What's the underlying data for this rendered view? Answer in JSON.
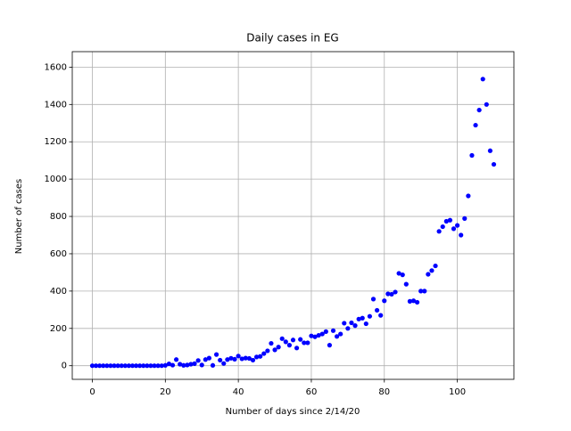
{
  "chart_data": {
    "type": "scatter",
    "title": "Daily cases in EG",
    "x_label": "Number of days since 2/14/20",
    "y_label": "Number of cases",
    "series": [
      {
        "color": "#0000ff",
        "x": [
          0,
          1,
          2,
          3,
          4,
          5,
          6,
          7,
          8,
          9,
          10,
          11,
          12,
          13,
          14,
          15,
          16,
          17,
          18,
          19,
          20,
          21,
          22,
          23,
          24,
          25,
          26,
          27,
          28,
          29,
          30,
          31,
          32,
          33,
          34,
          35,
          36,
          37,
          38,
          39,
          40,
          41,
          42,
          43,
          44,
          45,
          46,
          47,
          48,
          49,
          50,
          51,
          52,
          53,
          54,
          55,
          56,
          57,
          58,
          59,
          60,
          61,
          62,
          63,
          64,
          65,
          66,
          67,
          68,
          69,
          70,
          71,
          72,
          73,
          74,
          75,
          76,
          77,
          78,
          79,
          80,
          81,
          82,
          83,
          84,
          85,
          86,
          87,
          88,
          89,
          90,
          91,
          92,
          93,
          94,
          95,
          96,
          97,
          98,
          99,
          100,
          101,
          102,
          103,
          104,
          105,
          106,
          107,
          108,
          109,
          110
        ],
        "values": [
          0,
          0,
          0,
          0,
          0,
          0,
          0,
          0,
          0,
          0,
          0,
          0,
          0,
          0,
          0,
          0,
          0,
          0,
          0,
          0,
          2,
          10,
          3,
          33,
          8,
          2,
          4,
          8,
          11,
          28,
          4,
          33,
          41,
          2,
          60,
          30,
          12,
          33,
          40,
          35,
          52,
          37,
          41,
          39,
          30,
          47,
          50,
          65,
          80,
          120,
          85,
          100,
          145,
          128,
          110,
          138,
          95,
          141,
          123,
          123,
          160,
          155,
          163,
          170,
          183,
          110,
          188,
          157,
          170,
          228,
          200,
          230,
          215,
          250,
          255,
          225,
          265,
          357,
          297,
          270,
          348,
          385,
          383,
          395,
          495,
          487,
          437,
          345,
          348,
          340,
          400,
          400,
          490,
          510,
          535,
          720,
          745,
          774,
          780,
          734,
          752,
          700,
          789,
          910,
          1127,
          1289,
          1370,
          1536,
          1400,
          1152,
          1079
        ]
      }
    ],
    "xlim": [
      -5.5,
      115.5
    ],
    "ylim": [
      -73,
      1683
    ],
    "xticks": [
      0,
      20,
      40,
      60,
      80,
      100
    ],
    "yticks": [
      0,
      200,
      400,
      600,
      800,
      1000,
      1200,
      1400,
      1600
    ],
    "grid": true
  }
}
